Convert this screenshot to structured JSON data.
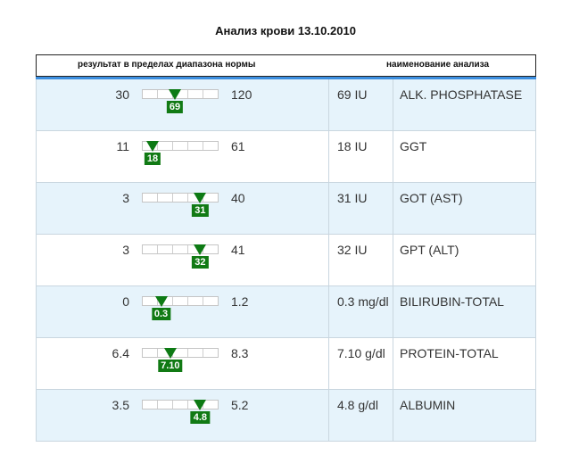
{
  "title": "Анализ крови 13.10.2010",
  "header": {
    "left": "результат в пределах диапазона нормы",
    "right": "наименование анализа"
  },
  "rows": [
    {
      "min": "30",
      "max": "120",
      "value": "69",
      "position": 0.43,
      "result": "69 IU",
      "name": "ALK. PHOSPHATASE"
    },
    {
      "min": "11",
      "max": "61",
      "value": "18",
      "position": 0.14,
      "result": "18 IU",
      "name": "GGT"
    },
    {
      "min": "3",
      "max": "40",
      "value": "31",
      "position": 0.76,
      "result": "31 IU",
      "name": "GOT (AST)"
    },
    {
      "min": "3",
      "max": "41",
      "value": "32",
      "position": 0.76,
      "result": "32 IU",
      "name": "GPT (ALT)"
    },
    {
      "min": "0",
      "max": "1.2",
      "value": "0.3",
      "position": 0.25,
      "result": "0.3 mg/dl",
      "name": "BILIRUBIN-TOTAL"
    },
    {
      "min": "6.4",
      "max": "8.3",
      "value": "7.10",
      "position": 0.37,
      "result": "7.10 g/dl",
      "name": "PROTEIN-TOTAL"
    },
    {
      "min": "3.5",
      "max": "5.2",
      "value": "4.8",
      "position": 0.76,
      "result": "4.8 g/dl",
      "name": "ALBUMIN"
    }
  ],
  "colors": {
    "marker": "#117a14",
    "header_line": "#3d8fe0",
    "row_alt": "#e6f3fb"
  }
}
